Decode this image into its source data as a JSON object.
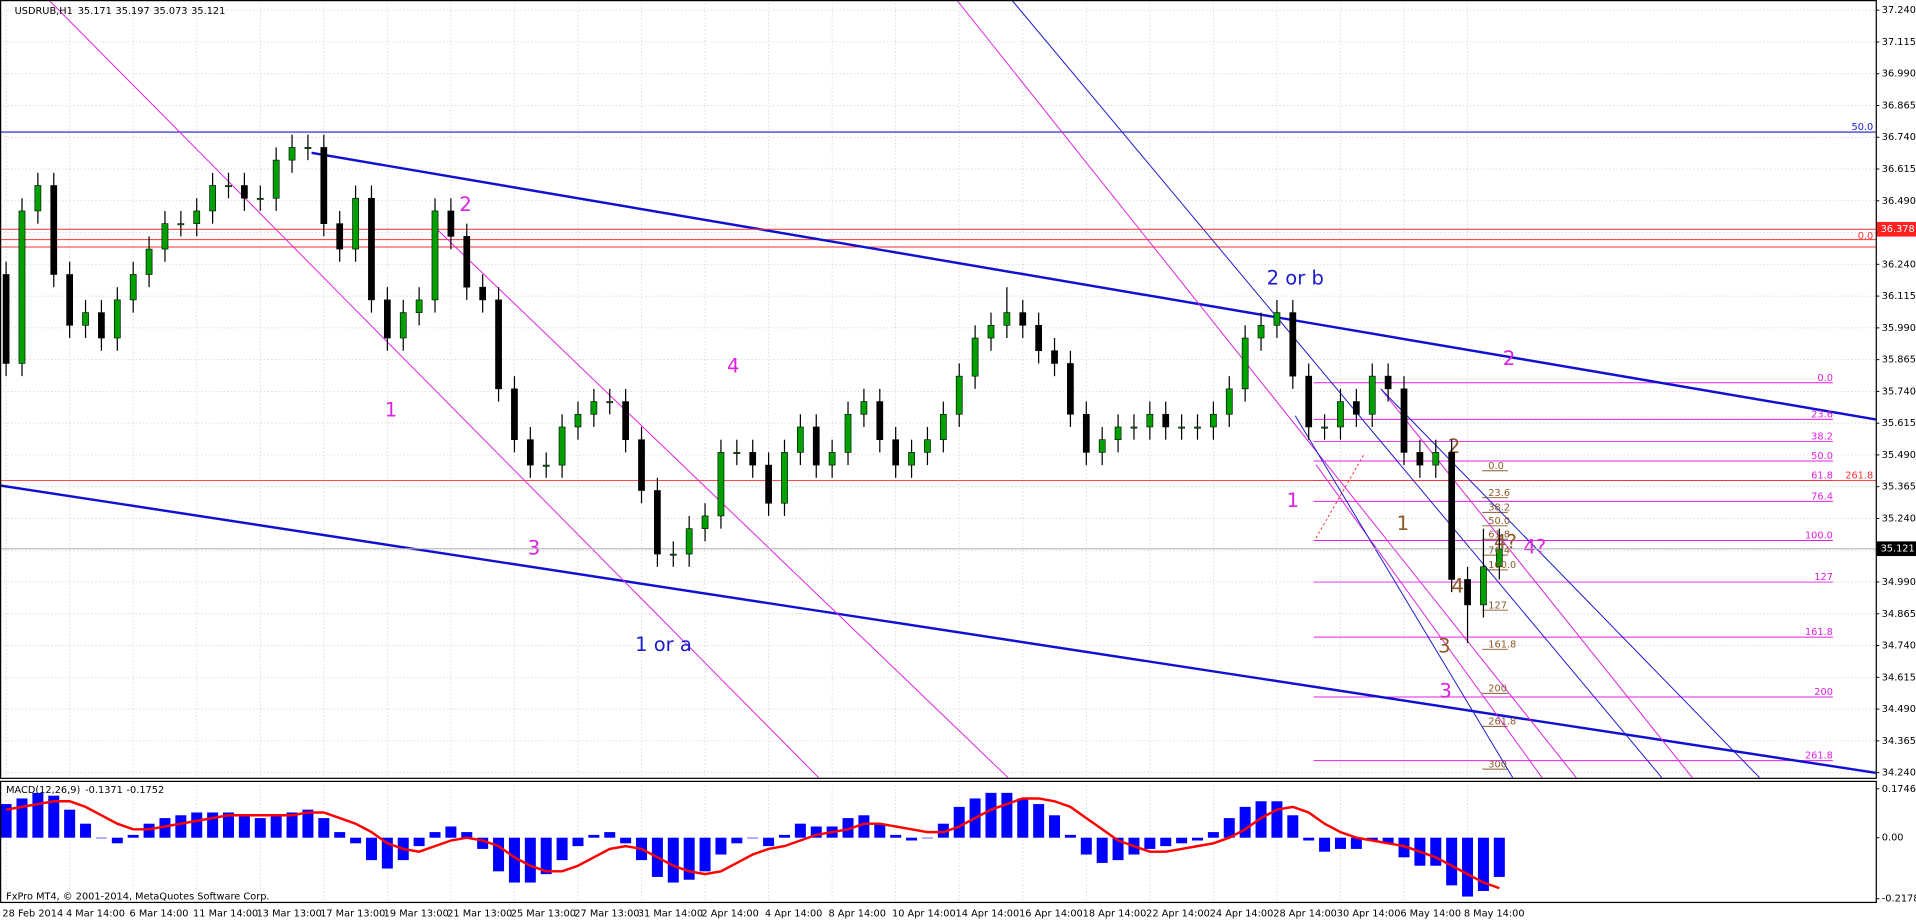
{
  "chart_data": {
    "type": "candlestick",
    "symbol": "USDRUB,H1",
    "ohlc_header": [
      35.171,
      35.197,
      35.073,
      35.121
    ],
    "copyright": "FxPro MT4, © 2001-2014, MetaQuotes Software Corp.",
    "categories": [
      "28 Feb 2014",
      null,
      null,
      null,
      "4 Mar 14:00",
      null,
      null,
      null,
      "6 Mar 14:00",
      null,
      null,
      null,
      "11 Mar 14:00",
      null,
      null,
      null,
      "13 Mar 13:00",
      null,
      null,
      null,
      "17 Mar 13:00",
      null,
      null,
      null,
      "19 Mar 13:00",
      null,
      null,
      null,
      "21 Mar 13:00",
      null,
      null,
      null,
      "25 Mar 13:00",
      null,
      null,
      null,
      "27 Mar 13:00",
      null,
      null,
      null,
      "31 Mar 14:00",
      null,
      null,
      null,
      "2 Apr 14:00",
      null,
      null,
      null,
      "4 Apr 14:00",
      null,
      null,
      null,
      "8 Apr 14:00",
      null,
      null,
      null,
      "10 Apr 14:00",
      null,
      null,
      null,
      "14 Apr 14:00",
      null,
      null,
      null,
      "16 Apr 14:00",
      null,
      null,
      null,
      "18 Apr 14:00",
      null,
      null,
      null,
      "22 Apr 14:00",
      null,
      null,
      null,
      "24 Apr 14:00",
      null,
      null,
      null,
      "28 Apr 14:00",
      null,
      null,
      null,
      "30 Apr 14:00",
      null,
      null,
      null,
      "6 May 14:00",
      null,
      null,
      null,
      "8 May 14:00",
      null,
      null
    ],
    "candles": [
      [
        36.2,
        36.25,
        35.8,
        35.85
      ],
      [
        35.85,
        36.5,
        35.8,
        36.45
      ],
      [
        36.45,
        36.6,
        36.4,
        36.55
      ],
      [
        36.55,
        36.6,
        36.15,
        36.2
      ],
      [
        36.2,
        36.25,
        35.95,
        36.0
      ],
      [
        36.0,
        36.1,
        35.95,
        36.05
      ],
      [
        36.05,
        36.1,
        35.9,
        35.95
      ],
      [
        35.95,
        36.15,
        35.9,
        36.1
      ],
      [
        36.1,
        36.25,
        36.05,
        36.2
      ],
      [
        36.2,
        36.35,
        36.15,
        36.3
      ],
      [
        36.3,
        36.45,
        36.25,
        36.4
      ],
      [
        36.4,
        36.45,
        36.35,
        36.4
      ],
      [
        36.4,
        36.5,
        36.35,
        36.45
      ],
      [
        36.45,
        36.6,
        36.4,
        36.55
      ],
      [
        36.55,
        36.6,
        36.5,
        36.55
      ],
      [
        36.55,
        36.6,
        36.45,
        36.5
      ],
      [
        36.5,
        36.55,
        36.45,
        36.5
      ],
      [
        36.5,
        36.7,
        36.45,
        36.65
      ],
      [
        36.65,
        36.75,
        36.6,
        36.7
      ],
      [
        36.7,
        36.75,
        36.65,
        36.7
      ],
      [
        36.7,
        36.75,
        36.35,
        36.4
      ],
      [
        36.4,
        36.45,
        36.25,
        36.3
      ],
      [
        36.3,
        36.55,
        36.25,
        36.5
      ],
      [
        36.5,
        36.55,
        36.05,
        36.1
      ],
      [
        36.1,
        36.15,
        35.9,
        35.95
      ],
      [
        35.95,
        36.1,
        35.9,
        36.05
      ],
      [
        36.05,
        36.15,
        36.0,
        36.1
      ],
      [
        36.1,
        36.5,
        36.05,
        36.45
      ],
      [
        36.45,
        36.5,
        36.3,
        36.35
      ],
      [
        36.35,
        36.4,
        36.1,
        36.15
      ],
      [
        36.15,
        36.2,
        36.05,
        36.1
      ],
      [
        36.1,
        36.15,
        35.7,
        35.75
      ],
      [
        35.75,
        35.8,
        35.5,
        35.55
      ],
      [
        35.55,
        35.6,
        35.4,
        35.45
      ],
      [
        35.45,
        35.5,
        35.4,
        35.45
      ],
      [
        35.45,
        35.65,
        35.4,
        35.6
      ],
      [
        35.6,
        35.7,
        35.55,
        35.65
      ],
      [
        35.65,
        35.75,
        35.6,
        35.7
      ],
      [
        35.7,
        35.75,
        35.65,
        35.7
      ],
      [
        35.7,
        35.75,
        35.5,
        35.55
      ],
      [
        35.55,
        35.6,
        35.3,
        35.35
      ],
      [
        35.35,
        35.4,
        35.05,
        35.1
      ],
      [
        35.1,
        35.15,
        35.05,
        35.1
      ],
      [
        35.1,
        35.25,
        35.05,
        35.2
      ],
      [
        35.2,
        35.3,
        35.15,
        35.25
      ],
      [
        35.25,
        35.55,
        35.2,
        35.5
      ],
      [
        35.5,
        35.55,
        35.45,
        35.5
      ],
      [
        35.5,
        35.55,
        35.4,
        35.45
      ],
      [
        35.45,
        35.5,
        35.25,
        35.3
      ],
      [
        35.3,
        35.55,
        35.25,
        35.5
      ],
      [
        35.5,
        35.65,
        35.45,
        35.6
      ],
      [
        35.6,
        35.65,
        35.4,
        35.45
      ],
      [
        35.45,
        35.55,
        35.4,
        35.5
      ],
      [
        35.5,
        35.7,
        35.45,
        35.65
      ],
      [
        35.65,
        35.75,
        35.6,
        35.7
      ],
      [
        35.7,
        35.75,
        35.5,
        35.55
      ],
      [
        35.55,
        35.6,
        35.4,
        35.45
      ],
      [
        35.45,
        35.55,
        35.4,
        35.5
      ],
      [
        35.5,
        35.6,
        35.45,
        35.55
      ],
      [
        35.55,
        35.7,
        35.5,
        35.65
      ],
      [
        35.65,
        35.85,
        35.6,
        35.8
      ],
      [
        35.8,
        36.0,
        35.75,
        35.95
      ],
      [
        35.95,
        36.05,
        35.9,
        36.0
      ],
      [
        36.0,
        36.15,
        35.95,
        36.05
      ],
      [
        36.05,
        36.1,
        35.95,
        36.0
      ],
      [
        36.0,
        36.05,
        35.85,
        35.9
      ],
      [
        35.9,
        35.95,
        35.8,
        35.85
      ],
      [
        35.85,
        35.9,
        35.6,
        35.65
      ],
      [
        35.65,
        35.7,
        35.45,
        35.5
      ],
      [
        35.5,
        35.6,
        35.45,
        35.55
      ],
      [
        35.55,
        35.65,
        35.5,
        35.6
      ],
      [
        35.6,
        35.65,
        35.55,
        35.6
      ],
      [
        35.6,
        35.7,
        35.55,
        35.65
      ],
      [
        35.65,
        35.7,
        35.55,
        35.6
      ],
      [
        35.6,
        35.65,
        35.55,
        35.6
      ],
      [
        35.6,
        35.65,
        35.55,
        35.6
      ],
      [
        35.6,
        35.7,
        35.55,
        35.65
      ],
      [
        35.65,
        35.8,
        35.6,
        35.75
      ],
      [
        35.75,
        36.0,
        35.7,
        35.95
      ],
      [
        35.95,
        36.05,
        35.9,
        36.0
      ],
      [
        36.0,
        36.1,
        35.95,
        36.05
      ],
      [
        36.05,
        36.1,
        35.75,
        35.8
      ],
      [
        35.8,
        35.85,
        35.55,
        35.6
      ],
      [
        35.6,
        35.65,
        35.55,
        35.6
      ],
      [
        35.6,
        35.75,
        35.55,
        35.7
      ],
      [
        35.7,
        35.75,
        35.6,
        35.65
      ],
      [
        35.65,
        35.85,
        35.6,
        35.8
      ],
      [
        35.8,
        35.85,
        35.7,
        35.75
      ],
      [
        35.75,
        35.8,
        35.45,
        35.5
      ],
      [
        35.5,
        35.55,
        35.4,
        35.45
      ],
      [
        35.45,
        35.55,
        35.4,
        35.5
      ],
      [
        35.5,
        35.55,
        34.95,
        35.0
      ],
      [
        35.0,
        35.05,
        34.75,
        34.9
      ],
      [
        34.9,
        35.2,
        34.85,
        35.05
      ],
      [
        35.05,
        35.2,
        35.0,
        35.12
      ]
    ],
    "bull_color": "#00a000",
    "bear_color": "#000000",
    "ylim": [
      34.22,
      37.28
    ],
    "yticks": [
      {
        "value": 37.24,
        "label": "37.240"
      },
      37.115,
      {
        "value": 36.99,
        "label": "36.990"
      },
      36.865,
      {
        "value": 36.74,
        "label": "36.740"
      },
      36.615,
      {
        "value": 36.49,
        "label": "36.490"
      },
      36.365,
      {
        "value": 36.24,
        "label": "36.240"
      },
      36.115,
      {
        "value": 35.99,
        "label": "35.990"
      },
      35.865,
      {
        "value": 35.74,
        "label": "35.740"
      },
      35.615,
      {
        "value": 35.49,
        "label": "35.490"
      },
      35.365,
      {
        "value": 35.24,
        "label": "35.240"
      },
      35.115,
      {
        "value": 34.99,
        "label": "34.990"
      },
      34.865,
      {
        "value": 34.74,
        "label": "34.740"
      },
      34.615,
      {
        "value": 34.49,
        "label": "34.490"
      },
      34.365,
      {
        "value": 34.24,
        "label": "34.240"
      }
    ],
    "grid": true,
    "current_price": 35.121,
    "level_price": 36.378,
    "indicator": {
      "name": "MACD(12,26,9)",
      "main_last": -0.1371,
      "signal_last": -0.1752,
      "ylim": [
        -0.231,
        0.201
      ],
      "yticks": [
        0.1746,
        {
          "value": 0,
          "label": "0.00"
        },
        -0.2178
      ],
      "histogram_color": "#0000ff",
      "signal_color": "#ff0000",
      "histogram": [
        0.12,
        0.14,
        0.16,
        0.15,
        0.1,
        0.05,
        0.0,
        -0.02,
        0.01,
        0.05,
        0.07,
        0.08,
        0.09,
        0.09,
        0.09,
        0.08,
        0.07,
        0.08,
        0.09,
        0.1,
        0.07,
        0.02,
        -0.02,
        -0.08,
        -0.11,
        -0.08,
        -0.03,
        0.02,
        0.04,
        0.02,
        -0.04,
        -0.12,
        -0.16,
        -0.16,
        -0.13,
        -0.08,
        -0.03,
        0.01,
        0.02,
        -0.02,
        -0.08,
        -0.14,
        -0.16,
        -0.15,
        -0.12,
        -0.06,
        -0.02,
        0.0,
        -0.03,
        0.01,
        0.05,
        0.04,
        0.04,
        0.07,
        0.08,
        0.05,
        0.01,
        -0.01,
        0.0,
        0.05,
        0.11,
        0.14,
        0.16,
        0.16,
        0.14,
        0.12,
        0.08,
        0.01,
        -0.06,
        -0.09,
        -0.08,
        -0.06,
        -0.04,
        -0.03,
        -0.02,
        -0.01,
        0.02,
        0.07,
        0.11,
        0.13,
        0.13,
        0.08,
        -0.01,
        -0.05,
        -0.04,
        -0.04,
        -0.01,
        -0.02,
        -0.07,
        -0.1,
        -0.1,
        -0.17,
        -0.21,
        -0.19,
        -0.14
      ],
      "signal": [
        0.1,
        0.11,
        0.12,
        0.13,
        0.13,
        0.11,
        0.08,
        0.05,
        0.03,
        0.03,
        0.04,
        0.05,
        0.06,
        0.07,
        0.08,
        0.08,
        0.08,
        0.08,
        0.08,
        0.09,
        0.09,
        0.07,
        0.05,
        0.02,
        -0.02,
        -0.04,
        -0.05,
        -0.03,
        -0.01,
        0.0,
        -0.01,
        -0.03,
        -0.07,
        -0.1,
        -0.12,
        -0.12,
        -0.1,
        -0.07,
        -0.04,
        -0.03,
        -0.04,
        -0.07,
        -0.1,
        -0.12,
        -0.13,
        -0.12,
        -0.09,
        -0.06,
        -0.04,
        -0.03,
        -0.01,
        0.01,
        0.02,
        0.03,
        0.05,
        0.05,
        0.04,
        0.03,
        0.02,
        0.02,
        0.04,
        0.07,
        0.1,
        0.12,
        0.14,
        0.14,
        0.13,
        0.11,
        0.07,
        0.03,
        -0.01,
        -0.03,
        -0.05,
        -0.05,
        -0.04,
        -0.03,
        -0.02,
        0.0,
        0.03,
        0.07,
        0.1,
        0.11,
        0.09,
        0.05,
        0.02,
        0.0,
        -0.01,
        -0.02,
        -0.03,
        -0.05,
        -0.07,
        -0.1,
        -0.13,
        -0.16,
        -0.18
      ]
    },
    "annotations": [
      "1",
      "2",
      "3",
      "4",
      "1 or a",
      "2 or b",
      "2",
      "1",
      "3",
      "4?",
      "2",
      "1",
      "4",
      "3",
      "4?",
      "261.8",
      "50.0",
      "0.0"
    ],
    "fib_outer": [
      "0.0",
      "23.6",
      "38.2",
      "50.0",
      "61.8",
      "76.4",
      "100.0",
      "127",
      "161.8",
      "200",
      "261.8"
    ],
    "fib_inner": [
      "0.0",
      "23.6",
      "38.2",
      "50.0",
      "61.8",
      "76.4",
      "100.0",
      "127",
      "161.8",
      "200",
      "261.8",
      "300"
    ]
  }
}
